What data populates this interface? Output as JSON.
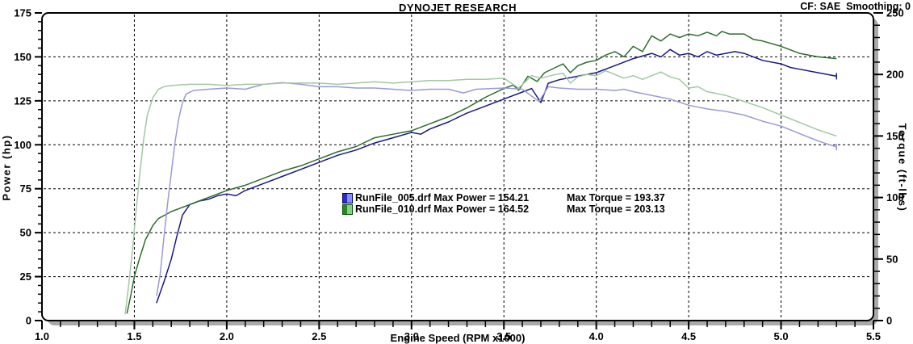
{
  "header": {
    "title": "DYNOJET RESEARCH",
    "correction_label": "CF: SAE  Smoothing: 0"
  },
  "axes": {
    "x": {
      "label": "Engine Speed (RPM x1000)",
      "tick_labels": [
        "1.0",
        "1.5",
        "2.0",
        "2.5",
        "3.0",
        "3.5",
        "4.0",
        "4.5",
        "5.0",
        "5.5"
      ],
      "minor_step": 0.1
    },
    "power": {
      "label": "Power (hp)",
      "tick_labels": [
        "0",
        "25",
        "50",
        "75",
        "100",
        "125",
        "150",
        "175"
      ],
      "minor_step": 5
    },
    "torque": {
      "label": "Torque (ft-lbs)",
      "tick_labels": [
        "0",
        "50",
        "100",
        "150",
        "200",
        "250"
      ],
      "minor_step": 10
    }
  },
  "legend": {
    "entries": [
      {
        "label_power": "RunFile_005.drf Max Power = 154.21",
        "label_torque": "Max Torque = 193.37",
        "swatch": "blue-gradient-swatch"
      },
      {
        "label_power": "RunFile_010.drf Max Power = 164.52",
        "label_torque": "Max Torque = 203.13",
        "swatch": "green-gradient-swatch"
      }
    ]
  },
  "colors": {
    "power_005": "#18188a",
    "power_010": "#2d6e2d",
    "torque_005": "#9a9ad8",
    "torque_010": "#a2c8a2",
    "frame_shadow": "#a9a9a9",
    "frame_border": "#000000",
    "background": "#ffffff"
  },
  "chart_data": {
    "type": "line",
    "title": "DYNOJET RESEARCH",
    "xlabel": "Engine Speed (RPM x1000)",
    "ylabel_left": "Power (hp)",
    "ylabel_right": "Torque (ft-lbs)",
    "xlim": [
      1.0,
      5.5
    ],
    "ylim_left": [
      0,
      175
    ],
    "ylim_right": [
      0,
      250
    ],
    "grid": true,
    "grid_x_step": 0.5,
    "grid_y_step_hp": 25,
    "legend_position": "center",
    "series": [
      {
        "id": "power-005",
        "name": "RunFile_005.drf Power (hp)",
        "axis": "left",
        "color": "#18188a",
        "max": 154.21,
        "end_cap": true,
        "points": [
          [
            1.62,
            10
          ],
          [
            1.66,
            22
          ],
          [
            1.7,
            35
          ],
          [
            1.73,
            48
          ],
          [
            1.76,
            60
          ],
          [
            1.8,
            66
          ],
          [
            1.85,
            68
          ],
          [
            1.9,
            69
          ],
          [
            1.95,
            71
          ],
          [
            2.0,
            72
          ],
          [
            2.05,
            71
          ],
          [
            2.1,
            74
          ],
          [
            2.2,
            78
          ],
          [
            2.3,
            82
          ],
          [
            2.4,
            86
          ],
          [
            2.5,
            90
          ],
          [
            2.6,
            94
          ],
          [
            2.7,
            97
          ],
          [
            2.8,
            101
          ],
          [
            2.9,
            104
          ],
          [
            3.0,
            107
          ],
          [
            3.05,
            106
          ],
          [
            3.1,
            109
          ],
          [
            3.2,
            113
          ],
          [
            3.3,
            118
          ],
          [
            3.4,
            122
          ],
          [
            3.5,
            126
          ],
          [
            3.6,
            130
          ],
          [
            3.65,
            132
          ],
          [
            3.7,
            124
          ],
          [
            3.74,
            135
          ],
          [
            3.8,
            137
          ],
          [
            3.9,
            139
          ],
          [
            4.0,
            141
          ],
          [
            4.1,
            145
          ],
          [
            4.2,
            149
          ],
          [
            4.3,
            152
          ],
          [
            4.35,
            150
          ],
          [
            4.4,
            154.2
          ],
          [
            4.45,
            151
          ],
          [
            4.5,
            152
          ],
          [
            4.55,
            150
          ],
          [
            4.6,
            153
          ],
          [
            4.65,
            151
          ],
          [
            4.7,
            152
          ],
          [
            4.75,
            153
          ],
          [
            4.8,
            152
          ],
          [
            4.85,
            150
          ],
          [
            4.9,
            148
          ],
          [
            5.0,
            146
          ],
          [
            5.05,
            144
          ],
          [
            5.1,
            143
          ],
          [
            5.2,
            141
          ],
          [
            5.3,
            139
          ]
        ]
      },
      {
        "id": "power-010",
        "name": "RunFile_010.drf Power (hp)",
        "axis": "left",
        "color": "#2d6e2d",
        "max": 164.52,
        "end_cap": false,
        "points": [
          [
            1.46,
            4
          ],
          [
            1.48,
            14
          ],
          [
            1.5,
            25
          ],
          [
            1.53,
            36
          ],
          [
            1.56,
            46
          ],
          [
            1.6,
            54
          ],
          [
            1.63,
            58
          ],
          [
            1.7,
            62
          ],
          [
            1.8,
            66
          ],
          [
            1.9,
            70
          ],
          [
            2.0,
            74
          ],
          [
            2.1,
            77
          ],
          [
            2.2,
            81
          ],
          [
            2.3,
            85
          ],
          [
            2.4,
            88
          ],
          [
            2.5,
            92
          ],
          [
            2.6,
            96
          ],
          [
            2.7,
            99
          ],
          [
            2.8,
            104
          ],
          [
            2.9,
            106
          ],
          [
            3.0,
            108
          ],
          [
            3.1,
            112
          ],
          [
            3.2,
            116
          ],
          [
            3.3,
            121
          ],
          [
            3.4,
            127
          ],
          [
            3.5,
            132
          ],
          [
            3.55,
            134
          ],
          [
            3.58,
            131
          ],
          [
            3.63,
            139
          ],
          [
            3.68,
            136
          ],
          [
            3.72,
            141
          ],
          [
            3.78,
            144
          ],
          [
            3.82,
            146
          ],
          [
            3.86,
            141
          ],
          [
            3.9,
            145
          ],
          [
            3.95,
            147
          ],
          [
            4.0,
            148
          ],
          [
            4.05,
            151
          ],
          [
            4.1,
            153
          ],
          [
            4.15,
            150
          ],
          [
            4.2,
            156
          ],
          [
            4.25,
            153
          ],
          [
            4.3,
            162
          ],
          [
            4.35,
            159
          ],
          [
            4.4,
            163
          ],
          [
            4.45,
            161
          ],
          [
            4.5,
            163
          ],
          [
            4.55,
            162
          ],
          [
            4.6,
            164
          ],
          [
            4.65,
            162
          ],
          [
            4.68,
            164.5
          ],
          [
            4.72,
            163
          ],
          [
            4.8,
            163
          ],
          [
            4.85,
            160
          ],
          [
            4.9,
            159
          ],
          [
            5.0,
            156
          ],
          [
            5.1,
            152
          ],
          [
            5.2,
            150
          ],
          [
            5.3,
            149
          ]
        ]
      },
      {
        "id": "torque-005",
        "name": "RunFile_005.drf Torque (ft-lbs)",
        "axis": "right",
        "color": "#9a9ad8",
        "max": 193.37,
        "end_cap": true,
        "points": [
          [
            1.62,
            20
          ],
          [
            1.64,
            38
          ],
          [
            1.66,
            68
          ],
          [
            1.68,
            95
          ],
          [
            1.7,
            120
          ],
          [
            1.72,
            145
          ],
          [
            1.74,
            164
          ],
          [
            1.76,
            177
          ],
          [
            1.78,
            184
          ],
          [
            1.82,
            187
          ],
          [
            1.9,
            188
          ],
          [
            2.0,
            189
          ],
          [
            2.1,
            188
          ],
          [
            2.2,
            192
          ],
          [
            2.3,
            193.4
          ],
          [
            2.4,
            192
          ],
          [
            2.5,
            190
          ],
          [
            2.6,
            190
          ],
          [
            2.7,
            189
          ],
          [
            2.8,
            189
          ],
          [
            2.9,
            188
          ],
          [
            3.0,
            187
          ],
          [
            3.1,
            188
          ],
          [
            3.2,
            188
          ],
          [
            3.28,
            185
          ],
          [
            3.35,
            188
          ],
          [
            3.5,
            189
          ],
          [
            3.6,
            188
          ],
          [
            3.69,
            178
          ],
          [
            3.74,
            190
          ],
          [
            3.8,
            189
          ],
          [
            3.9,
            188
          ],
          [
            4.0,
            188
          ],
          [
            4.1,
            187
          ],
          [
            4.15,
            188
          ],
          [
            4.2,
            186
          ],
          [
            4.3,
            183
          ],
          [
            4.4,
            180
          ],
          [
            4.5,
            175
          ],
          [
            4.6,
            172
          ],
          [
            4.7,
            170
          ],
          [
            4.8,
            167
          ],
          [
            4.9,
            162
          ],
          [
            5.0,
            158
          ],
          [
            5.1,
            152
          ],
          [
            5.2,
            146
          ],
          [
            5.3,
            141
          ]
        ]
      },
      {
        "id": "torque-010",
        "name": "RunFile_010.drf Torque (ft-lbs)",
        "axis": "right",
        "color": "#a2c8a2",
        "max": 203.13,
        "end_cap": false,
        "points": [
          [
            1.45,
            5
          ],
          [
            1.47,
            30
          ],
          [
            1.49,
            58
          ],
          [
            1.51,
            90
          ],
          [
            1.53,
            120
          ],
          [
            1.55,
            147
          ],
          [
            1.57,
            167
          ],
          [
            1.6,
            181
          ],
          [
            1.63,
            188
          ],
          [
            1.66,
            190
          ],
          [
            1.7,
            191
          ],
          [
            1.8,
            192
          ],
          [
            1.9,
            192
          ],
          [
            2.0,
            191
          ],
          [
            2.1,
            192
          ],
          [
            2.2,
            192
          ],
          [
            2.3,
            193
          ],
          [
            2.4,
            193
          ],
          [
            2.5,
            193
          ],
          [
            2.6,
            192
          ],
          [
            2.7,
            193
          ],
          [
            2.8,
            194
          ],
          [
            2.9,
            193
          ],
          [
            3.0,
            194
          ],
          [
            3.1,
            195
          ],
          [
            3.2,
            195
          ],
          [
            3.3,
            196
          ],
          [
            3.4,
            196
          ],
          [
            3.5,
            197
          ],
          [
            3.58,
            189
          ],
          [
            3.65,
            199
          ],
          [
            3.7,
            197
          ],
          [
            3.78,
            200
          ],
          [
            3.82,
            201
          ],
          [
            3.86,
            193
          ],
          [
            3.9,
            198
          ],
          [
            3.95,
            200
          ],
          [
            4.0,
            199
          ],
          [
            4.05,
            203.1
          ],
          [
            4.1,
            200
          ],
          [
            4.15,
            197
          ],
          [
            4.2,
            199
          ],
          [
            4.25,
            196
          ],
          [
            4.3,
            199
          ],
          [
            4.35,
            202
          ],
          [
            4.4,
            198
          ],
          [
            4.45,
            196
          ],
          [
            4.5,
            189
          ],
          [
            4.55,
            190
          ],
          [
            4.6,
            186
          ],
          [
            4.7,
            183
          ],
          [
            4.8,
            178
          ],
          [
            4.9,
            173
          ],
          [
            5.0,
            167
          ],
          [
            5.1,
            161
          ],
          [
            5.2,
            155
          ],
          [
            5.3,
            150
          ]
        ]
      }
    ]
  }
}
